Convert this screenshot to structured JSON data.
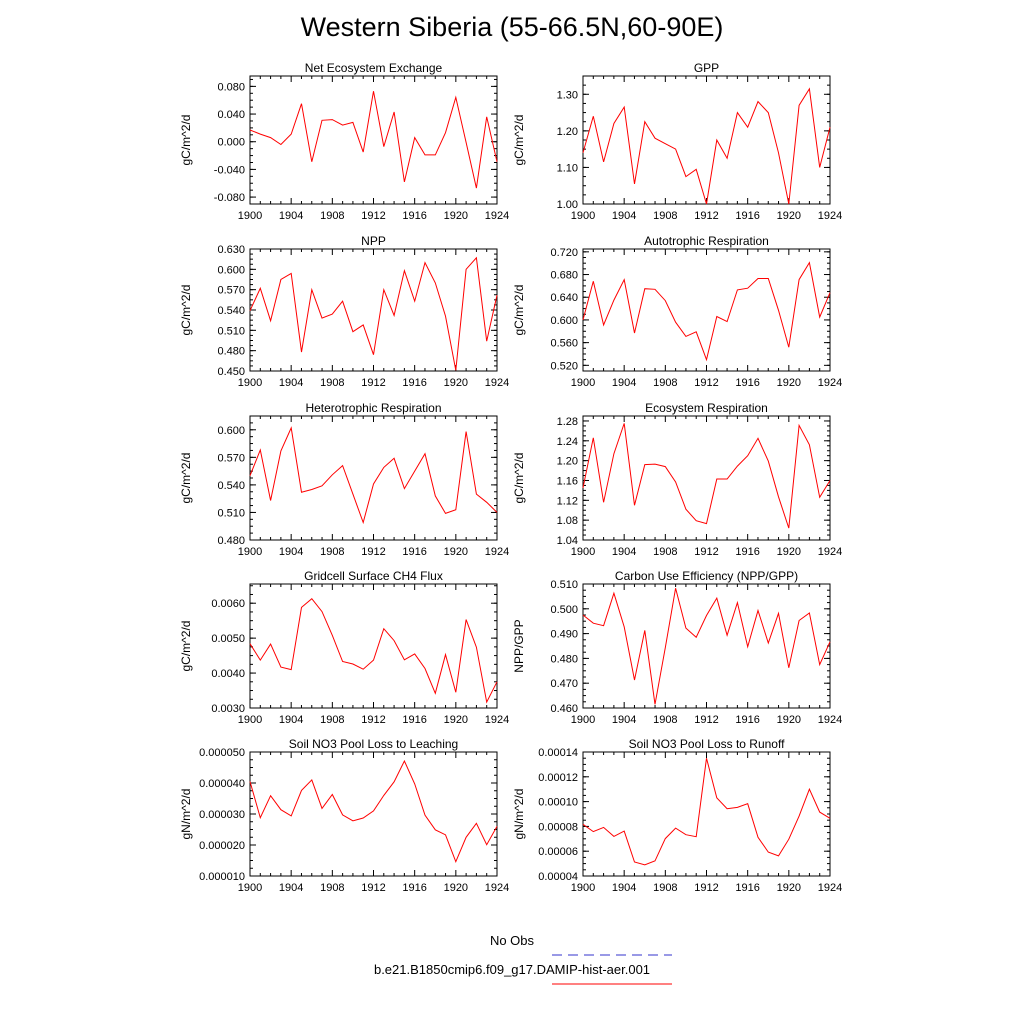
{
  "title": "Western Siberia (55-66.5N,60-90E)",
  "legend": {
    "entries": [
      {
        "label": "No Obs",
        "color": "#3333cc",
        "dash": "dashed"
      },
      {
        "label": "b.e21.B1850cmip6.f09_g17.DAMIP-hist-aer.001",
        "color": "#ff0000",
        "dash": "solid"
      }
    ]
  },
  "chart_data": [
    {
      "type": "line",
      "title": "Net Ecosystem Exchange",
      "ylabel": "gC/m^2/d",
      "xlim": [
        1900,
        1924
      ],
      "ylim": [
        -0.09,
        0.095
      ],
      "xticks": [
        "1900",
        "1904",
        "1908",
        "1912",
        "1916",
        "1920",
        "1924"
      ],
      "yticks": [
        -0.08,
        -0.04,
        0.0,
        0.04,
        0.08
      ],
      "ytick_labels": [
        "-0.080",
        "-0.040",
        "0.000",
        "0.040",
        "0.080"
      ],
      "series": [
        {
          "color": "#ff0000",
          "x": [
            1900,
            1901,
            1902,
            1903,
            1904,
            1905,
            1906,
            1907,
            1908,
            1909,
            1910,
            1911,
            1912,
            1913,
            1914,
            1915,
            1916,
            1917,
            1918,
            1919,
            1920,
            1921,
            1922,
            1923,
            1924
          ],
          "values": [
            0.017,
            0.011,
            0.006,
            -0.004,
            0.011,
            0.055,
            -0.029,
            0.031,
            0.032,
            0.024,
            0.028,
            -0.015,
            0.073,
            -0.007,
            0.043,
            -0.058,
            0.006,
            -0.019,
            -0.019,
            0.013,
            0.064,
            -0.001,
            -0.067,
            0.036,
            -0.029
          ]
        }
      ]
    },
    {
      "type": "line",
      "title": "GPP",
      "ylabel": "gC/m^2/d",
      "xlim": [
        1900,
        1924
      ],
      "ylim": [
        1.0,
        1.35
      ],
      "xticks": [
        "1900",
        "1904",
        "1908",
        "1912",
        "1916",
        "1920",
        "1924"
      ],
      "yticks": [
        1.0,
        1.1,
        1.2,
        1.3
      ],
      "ytick_labels": [
        "1.00",
        "1.10",
        "1.20",
        "1.30"
      ],
      "series": [
        {
          "color": "#ff0000",
          "x": [
            1900,
            1901,
            1902,
            1903,
            1904,
            1905,
            1906,
            1907,
            1908,
            1909,
            1910,
            1911,
            1912,
            1913,
            1914,
            1915,
            1916,
            1917,
            1918,
            1919,
            1920,
            1921,
            1922,
            1923,
            1924
          ],
          "values": [
            1.14,
            1.24,
            1.115,
            1.22,
            1.265,
            1.055,
            1.225,
            1.18,
            1.165,
            1.15,
            1.075,
            1.095,
            1.0,
            1.175,
            1.125,
            1.25,
            1.21,
            1.28,
            1.25,
            1.14,
            1.0,
            1.27,
            1.315,
            1.1,
            1.21
          ]
        }
      ]
    },
    {
      "type": "line",
      "title": "NPP",
      "ylabel": "gC/m^2/d",
      "xlim": [
        1900,
        1924
      ],
      "ylim": [
        0.45,
        0.63
      ],
      "xticks": [
        "1900",
        "1904",
        "1908",
        "1912",
        "1916",
        "1920",
        "1924"
      ],
      "yticks": [
        0.45,
        0.48,
        0.51,
        0.54,
        0.57,
        0.6,
        0.63
      ],
      "ytick_labels": [
        "0.450",
        "0.480",
        "0.510",
        "0.540",
        "0.570",
        "0.600",
        "0.630"
      ],
      "series": [
        {
          "color": "#ff0000",
          "x": [
            1900,
            1901,
            1902,
            1903,
            1904,
            1905,
            1906,
            1907,
            1908,
            1909,
            1910,
            1911,
            1912,
            1913,
            1914,
            1915,
            1916,
            1917,
            1918,
            1919,
            1920,
            1921,
            1922,
            1923,
            1924
          ],
          "values": [
            0.539,
            0.572,
            0.524,
            0.585,
            0.594,
            0.478,
            0.57,
            0.528,
            0.534,
            0.553,
            0.508,
            0.518,
            0.474,
            0.57,
            0.532,
            0.598,
            0.553,
            0.61,
            0.58,
            0.531,
            0.451,
            0.6,
            0.617,
            0.494,
            0.562
          ]
        }
      ]
    },
    {
      "type": "line",
      "title": "Autotrophic Respiration",
      "ylabel": "gC/m^2/d",
      "xlim": [
        1900,
        1924
      ],
      "ylim": [
        0.51,
        0.725
      ],
      "xticks": [
        "1900",
        "1904",
        "1908",
        "1912",
        "1916",
        "1920",
        "1924"
      ],
      "yticks": [
        0.52,
        0.56,
        0.6,
        0.64,
        0.68,
        0.72
      ],
      "ytick_labels": [
        "0.520",
        "0.560",
        "0.600",
        "0.640",
        "0.680",
        "0.720"
      ],
      "series": [
        {
          "color": "#ff0000",
          "x": [
            1900,
            1901,
            1902,
            1903,
            1904,
            1905,
            1906,
            1907,
            1908,
            1909,
            1910,
            1911,
            1912,
            1913,
            1914,
            1915,
            1916,
            1917,
            1918,
            1919,
            1920,
            1921,
            1922,
            1923,
            1924
          ],
          "values": [
            0.6,
            0.668,
            0.591,
            0.635,
            0.671,
            0.577,
            0.655,
            0.654,
            0.634,
            0.596,
            0.571,
            0.579,
            0.53,
            0.606,
            0.597,
            0.653,
            0.656,
            0.673,
            0.673,
            0.617,
            0.552,
            0.671,
            0.701,
            0.605,
            0.648
          ]
        }
      ]
    },
    {
      "type": "line",
      "title": "Heterotrophic Respiration",
      "ylabel": "gC/m^2/d",
      "xlim": [
        1900,
        1924
      ],
      "ylim": [
        0.48,
        0.615
      ],
      "xticks": [
        "1900",
        "1904",
        "1908",
        "1912",
        "1916",
        "1920",
        "1924"
      ],
      "yticks": [
        0.48,
        0.51,
        0.54,
        0.57,
        0.6
      ],
      "ytick_labels": [
        "0.480",
        "0.510",
        "0.540",
        "0.570",
        "0.600"
      ],
      "series": [
        {
          "color": "#ff0000",
          "x": [
            1900,
            1901,
            1902,
            1903,
            1904,
            1905,
            1906,
            1907,
            1908,
            1909,
            1910,
            1911,
            1912,
            1913,
            1914,
            1915,
            1916,
            1917,
            1918,
            1919,
            1920,
            1921,
            1922,
            1923,
            1924
          ],
          "values": [
            0.55,
            0.578,
            0.523,
            0.577,
            0.602,
            0.532,
            0.535,
            0.539,
            0.551,
            0.561,
            0.53,
            0.499,
            0.541,
            0.559,
            0.569,
            0.536,
            0.555,
            0.574,
            0.528,
            0.509,
            0.513,
            0.598,
            0.53,
            0.521,
            0.51
          ]
        }
      ]
    },
    {
      "type": "line",
      "title": "Ecosystem Respiration",
      "ylabel": "gC/m^2/d",
      "xlim": [
        1900,
        1924
      ],
      "ylim": [
        1.04,
        1.29
      ],
      "xticks": [
        "1900",
        "1904",
        "1908",
        "1912",
        "1916",
        "1920",
        "1924"
      ],
      "yticks": [
        1.04,
        1.08,
        1.12,
        1.16,
        1.2,
        1.24,
        1.28
      ],
      "ytick_labels": [
        "1.04",
        "1.08",
        "1.12",
        "1.16",
        "1.20",
        "1.24",
        "1.28"
      ],
      "series": [
        {
          "color": "#ff0000",
          "x": [
            1900,
            1901,
            1902,
            1903,
            1904,
            1905,
            1906,
            1907,
            1908,
            1909,
            1910,
            1911,
            1912,
            1913,
            1914,
            1915,
            1916,
            1917,
            1918,
            1919,
            1920,
            1921,
            1922,
            1923,
            1924
          ],
          "values": [
            1.145,
            1.246,
            1.116,
            1.214,
            1.275,
            1.11,
            1.192,
            1.193,
            1.188,
            1.157,
            1.102,
            1.079,
            1.073,
            1.163,
            1.163,
            1.189,
            1.21,
            1.245,
            1.199,
            1.127,
            1.064,
            1.271,
            1.232,
            1.126,
            1.16
          ]
        }
      ]
    },
    {
      "type": "line",
      "title": "Gridcell Surface CH4 Flux",
      "ylabel": "gC/m^2/d",
      "xlim": [
        1900,
        1924
      ],
      "ylim": [
        0.003,
        0.00655
      ],
      "xticks": [
        "1900",
        "1904",
        "1908",
        "1912",
        "1916",
        "1920",
        "1924"
      ],
      "yticks": [
        0.003,
        0.004,
        0.005,
        0.006
      ],
      "ytick_labels": [
        "0.0030",
        "0.0040",
        "0.0050",
        "0.0060"
      ],
      "series": [
        {
          "color": "#ff0000",
          "x": [
            1900,
            1901,
            1902,
            1903,
            1904,
            1905,
            1906,
            1907,
            1908,
            1909,
            1910,
            1911,
            1912,
            1913,
            1914,
            1915,
            1916,
            1917,
            1918,
            1919,
            1920,
            1921,
            1922,
            1923,
            1924
          ],
          "values": [
            0.00484,
            0.00437,
            0.00483,
            0.00417,
            0.0041,
            0.00588,
            0.00613,
            0.00576,
            0.00508,
            0.00433,
            0.00426,
            0.00411,
            0.00437,
            0.00527,
            0.00493,
            0.00438,
            0.00455,
            0.00413,
            0.00342,
            0.00453,
            0.00345,
            0.00553,
            0.00474,
            0.00317,
            0.00375
          ]
        }
      ]
    },
    {
      "type": "line",
      "title": "Carbon Use Efficiency (NPP/GPP)",
      "ylabel": "NPP/GPP",
      "xlim": [
        1900,
        1924
      ],
      "ylim": [
        0.46,
        0.51
      ],
      "xticks": [
        "1900",
        "1904",
        "1908",
        "1912",
        "1916",
        "1920",
        "1924"
      ],
      "yticks": [
        0.46,
        0.47,
        0.48,
        0.49,
        0.5,
        0.51
      ],
      "ytick_labels": [
        "0.460",
        "0.470",
        "0.480",
        "0.490",
        "0.500",
        "0.510"
      ],
      "series": [
        {
          "color": "#ff0000",
          "x": [
            1900,
            1901,
            1902,
            1903,
            1904,
            1905,
            1906,
            1907,
            1908,
            1909,
            1910,
            1911,
            1912,
            1913,
            1914,
            1915,
            1916,
            1917,
            1918,
            1919,
            1920,
            1921,
            1922,
            1923,
            1924
          ],
          "values": [
            0.4975,
            0.4942,
            0.4932,
            0.5063,
            0.4927,
            0.4713,
            0.4913,
            0.4615,
            0.4843,
            0.5083,
            0.4922,
            0.4885,
            0.4973,
            0.5043,
            0.4893,
            0.5025,
            0.4847,
            0.4993,
            0.4862,
            0.4982,
            0.4762,
            0.4953,
            0.4983,
            0.4775,
            0.4867
          ]
        }
      ]
    },
    {
      "type": "line",
      "title": "Soil NO3 Pool Loss to Leaching",
      "ylabel": "gN/m^2/d",
      "xlim": [
        1900,
        1924
      ],
      "ylim": [
        1e-05,
        5e-05
      ],
      "xticks": [
        "1900",
        "1904",
        "1908",
        "1912",
        "1916",
        "1920",
        "1924"
      ],
      "yticks": [
        1e-05,
        2e-05,
        3e-05,
        4e-05,
        5e-05
      ],
      "ytick_labels": [
        "0.000010",
        "0.000020",
        "0.000030",
        "0.000040",
        "0.000050"
      ],
      "series": [
        {
          "color": "#ff0000",
          "x": [
            1900,
            1901,
            1902,
            1903,
            1904,
            1905,
            1906,
            1907,
            1908,
            1909,
            1910,
            1911,
            1912,
            1913,
            1914,
            1915,
            1916,
            1917,
            1918,
            1919,
            1920,
            1921,
            1922,
            1923,
            1924
          ],
          "values": [
            4.05e-05,
            2.88e-05,
            3.59e-05,
            3.14e-05,
            2.94e-05,
            3.76e-05,
            4.1e-05,
            3.18e-05,
            3.63e-05,
            2.97e-05,
            2.78e-05,
            2.87e-05,
            3.1e-05,
            3.6e-05,
            4.04e-05,
            4.71e-05,
            3.97e-05,
            2.96e-05,
            2.49e-05,
            2.33e-05,
            1.46e-05,
            2.25e-05,
            2.7e-05,
            2.01e-05,
            2.6e-05
          ]
        }
      ]
    },
    {
      "type": "line",
      "title": "Soil NO3 Pool Loss to Runoff",
      "ylabel": "gN/m^2/d",
      "xlim": [
        1900,
        1924
      ],
      "ylim": [
        4e-05,
        0.00014
      ],
      "xticks": [
        "1900",
        "1904",
        "1908",
        "1912",
        "1916",
        "1920",
        "1924"
      ],
      "yticks": [
        4e-05,
        6e-05,
        8e-05,
        0.0001,
        0.00012,
        0.00014
      ],
      "ytick_labels": [
        "0.00004",
        "0.00006",
        "0.00008",
        "0.00010",
        "0.00012",
        "0.00014"
      ],
      "series": [
        {
          "color": "#ff0000",
          "x": [
            1900,
            1901,
            1902,
            1903,
            1904,
            1905,
            1906,
            1907,
            1908,
            1909,
            1910,
            1911,
            1912,
            1913,
            1914,
            1915,
            1916,
            1917,
            1918,
            1919,
            1920,
            1921,
            1922,
            1923,
            1924
          ],
          "values": [
            8.17e-05,
            7.58e-05,
            7.92e-05,
            7.19e-05,
            7.62e-05,
            5.13e-05,
            4.9e-05,
            5.22e-05,
            7.02e-05,
            7.86e-05,
            7.33e-05,
            7.17e-05,
            0.000135,
            0.000103,
            9.43e-05,
            9.53e-05,
            9.83e-05,
            7.12e-05,
            5.93e-05,
            5.62e-05,
            6.97e-05,
            8.83e-05,
            0.00011,
            9.15e-05,
            8.65e-05
          ]
        }
      ]
    }
  ]
}
